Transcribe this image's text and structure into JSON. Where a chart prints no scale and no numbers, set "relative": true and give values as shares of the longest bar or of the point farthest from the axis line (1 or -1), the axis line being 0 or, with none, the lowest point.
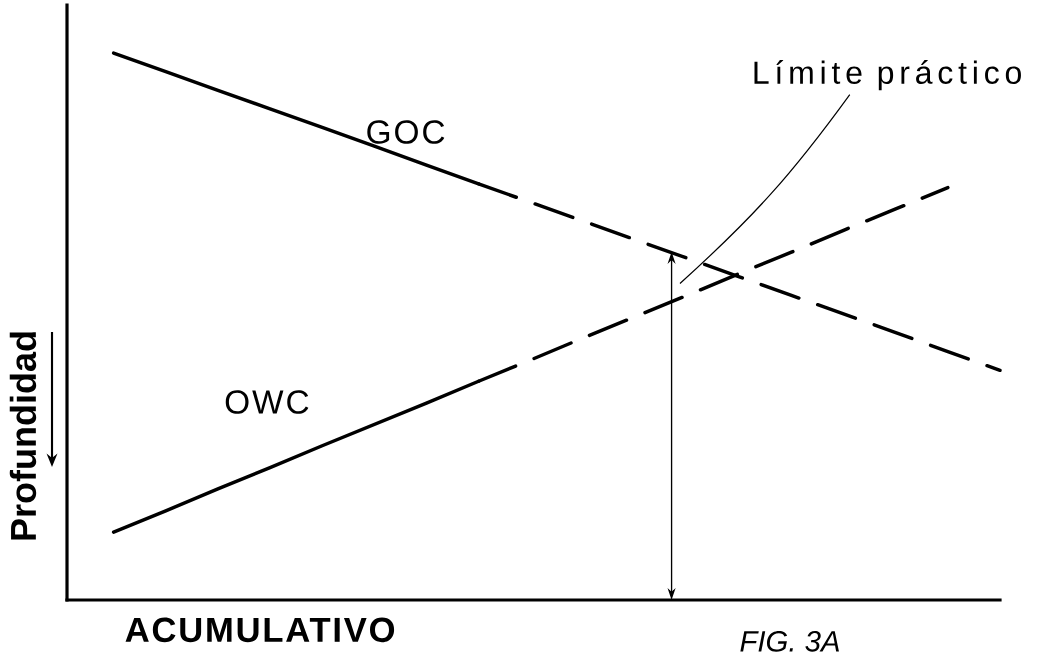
{
  "chart_data": {
    "type": "line",
    "relative": true,
    "xlabel": "ACUMULATIVO",
    "ylabel": "Profundidad",
    "categories": [
      null,
      null,
      null,
      null,
      null,
      null,
      null,
      null,
      null,
      null,
      null,
      null,
      null,
      null,
      null,
      null,
      null,
      null
    ],
    "series": [
      {
        "name": "GOC",
        "color": "#000000",
        "line_style": "solid",
        "values": [
          1.0,
          0.966,
          0.932,
          0.898,
          0.864,
          0.83,
          0.795,
          0.761,
          null,
          null,
          null,
          null,
          null,
          null,
          null,
          null,
          null,
          null
        ]
      },
      {
        "color": "#000000",
        "line_style": "dashed",
        "values": [
          null,
          null,
          null,
          null,
          null,
          null,
          null,
          0.761,
          0.727,
          0.693,
          0.659,
          0.625,
          0.591,
          0.557,
          0.523,
          0.489,
          0.454,
          0.42
        ]
      },
      {
        "name": "OWC",
        "color": "#000000",
        "line_style": "solid",
        "values": [
          0.124,
          0.163,
          0.203,
          0.242,
          0.282,
          0.321,
          0.36,
          0.4,
          null,
          null,
          null,
          null,
          null,
          null,
          null,
          null,
          null,
          null
        ]
      },
      {
        "color": "#000000",
        "line_style": "dashed",
        "values": [
          null,
          null,
          null,
          null,
          null,
          null,
          null,
          0.4,
          0.439,
          0.479,
          0.518,
          0.557,
          0.597,
          0.636,
          0.676,
          0.715,
          0.754,
          null
        ]
      }
    ],
    "annotations": [
      "Límite práctico",
      "FIG. 3A"
    ]
  }
}
